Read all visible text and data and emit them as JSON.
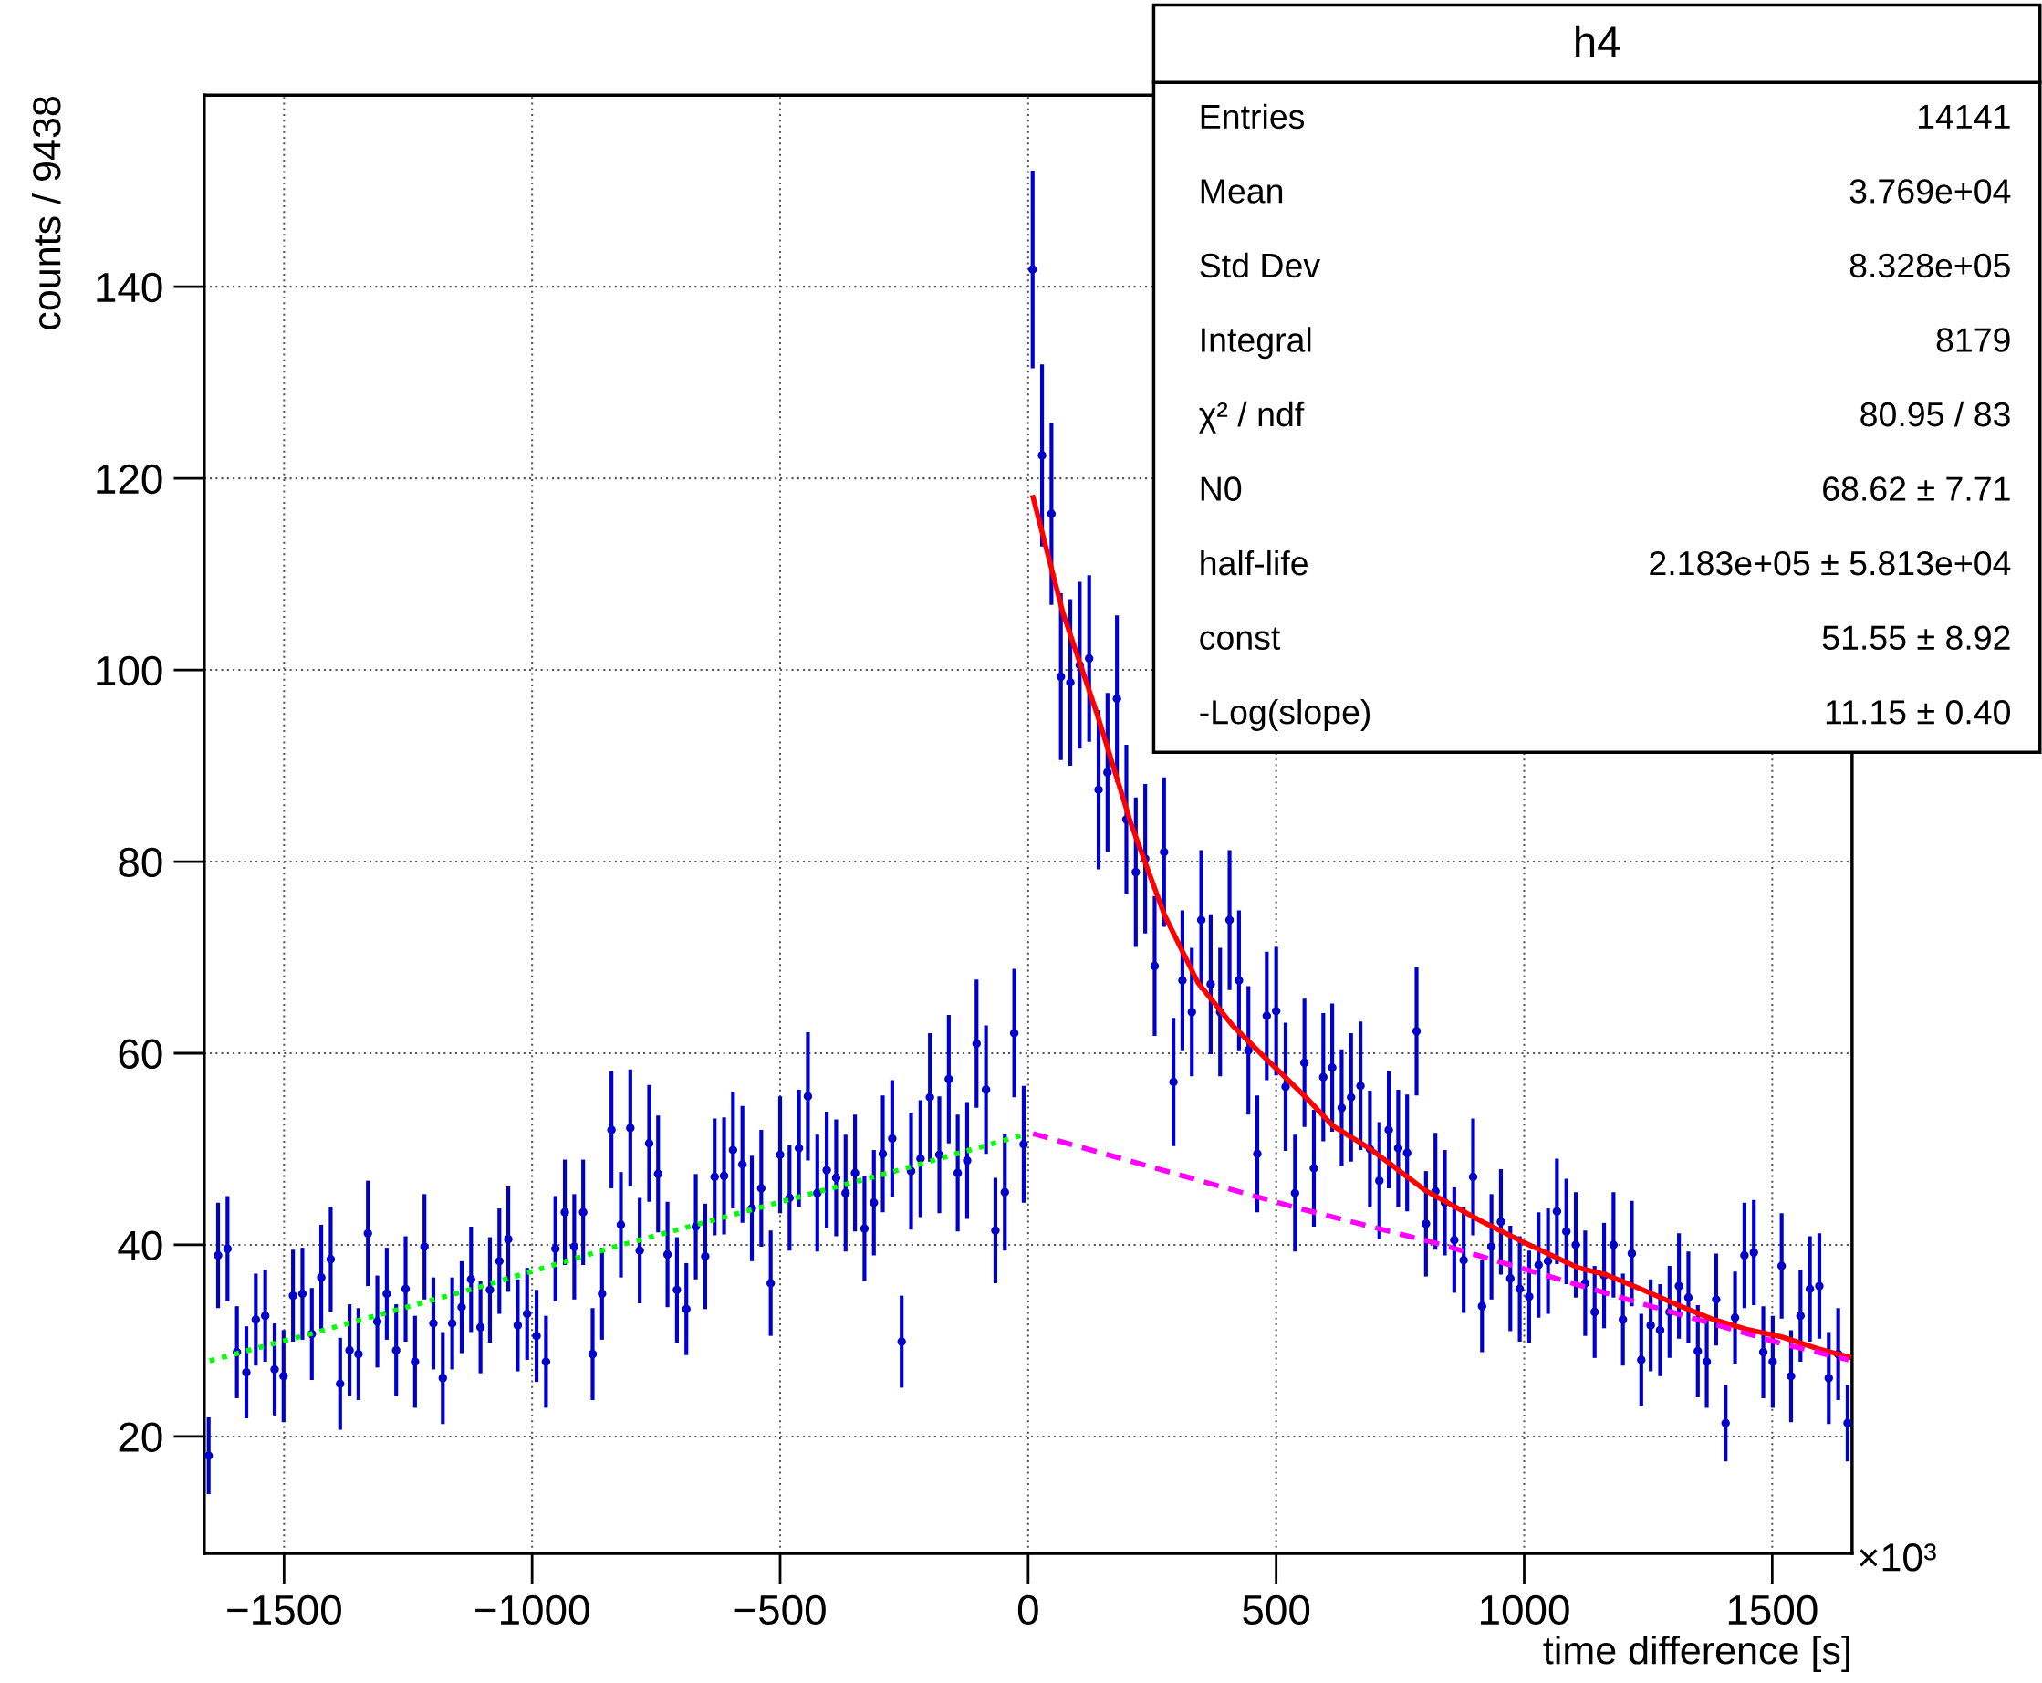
{
  "chart_data": {
    "type": "scatter",
    "xlabel": "time difference [s]",
    "ylabel": "counts / 9438",
    "xlim": [
      -1661,
      1661
    ],
    "xticks": [
      {
        "value": -1500,
        "label": "−1500"
      },
      {
        "value": -1000,
        "label": "−1000"
      },
      {
        "value": -500,
        "label": "−500"
      },
      0,
      500,
      1000,
      1500
    ],
    "ylim": [
      7.8,
      160
    ],
    "yticks": [
      20,
      40,
      60,
      80,
      100,
      120,
      140
    ],
    "grid": true,
    "legend": false,
    "annotations": [
      "×10³",
      "h4",
      "Entries",
      "14141",
      "Mean",
      "3.769e+04",
      "Std Dev",
      "8.328e+05",
      "Integral",
      "8179",
      "χ² / ndf",
      "80.95 / 83",
      "N0",
      "68.62 ± 7.71",
      "half-life",
      "2.183e+05 ± 5.813e+04",
      "const",
      "51.55 ± 8.92",
      "-Log(slope)",
      "11.15 ± 0.40"
    ],
    "series": [
      {
        "type": "scatter",
        "color": "#0000cc",
        "marker": "circle",
        "x": [
          -1652,
          -1633,
          -1614,
          -1595,
          -1576,
          -1557,
          -1538,
          -1519,
          -1501,
          -1482,
          -1463,
          -1444,
          -1425,
          -1406,
          -1387,
          -1368,
          -1350,
          -1331,
          -1312,
          -1293,
          -1274,
          -1255,
          -1236,
          -1217,
          -1199,
          -1180,
          -1161,
          -1142,
          -1123,
          -1104,
          -1085,
          -1066,
          -1048,
          -1029,
          -1010,
          -991,
          -972,
          -953,
          -934,
          -915,
          -897,
          -878,
          -859,
          -840,
          -821,
          -802,
          -783,
          -764,
          -746,
          -727,
          -708,
          -689,
          -670,
          -651,
          -632,
          -613,
          -595,
          -576,
          -557,
          -538,
          -519,
          -500,
          -481,
          -462,
          -444,
          -425,
          -406,
          -387,
          -368,
          -349,
          -330,
          -311,
          -293,
          -274,
          -255,
          -236,
          -217,
          -198,
          -179,
          -160,
          -142,
          -123,
          -104,
          -85,
          -66,
          -47,
          -28,
          -9,
          9,
          28,
          47,
          66,
          85,
          104,
          123,
          142,
          160,
          179,
          198,
          217,
          236,
          255,
          274,
          293,
          311,
          330,
          349,
          368,
          387,
          406,
          425,
          444,
          462,
          481,
          500,
          519,
          538,
          557,
          576,
          595,
          613,
          632,
          651,
          670,
          689,
          708,
          727,
          746,
          764,
          783,
          802,
          821,
          840,
          859,
          878,
          897,
          915,
          934,
          953,
          972,
          991,
          1010,
          1029,
          1048,
          1066,
          1085,
          1104,
          1123,
          1142,
          1161,
          1180,
          1199,
          1217,
          1236,
          1255,
          1274,
          1293,
          1312,
          1331,
          1350,
          1368,
          1387,
          1406,
          1425,
          1444,
          1463,
          1482,
          1501,
          1519,
          1538,
          1557,
          1576,
          1595,
          1614,
          1633,
          1652
        ],
        "values": [
          18.0,
          38.9,
          39.6,
          28.8,
          26.7,
          32.2,
          32.6,
          27.0,
          26.3,
          34.7,
          34.9,
          30.7,
          36.6,
          38.5,
          25.5,
          29.0,
          28.6,
          41.2,
          32.0,
          34.9,
          29.0,
          35.4,
          27.8,
          39.8,
          31.8,
          26.1,
          31.8,
          33.5,
          36.4,
          31.4,
          35.3,
          38.3,
          40.6,
          31.6,
          32.8,
          30.5,
          27.8,
          39.6,
          43.4,
          39.8,
          43.4,
          28.6,
          34.9,
          52.0,
          42.1,
          52.2,
          39.4,
          50.6,
          47.4,
          39.0,
          35.3,
          33.3,
          41.9,
          38.8,
          47.1,
          47.2,
          49.9,
          48.4,
          43.8,
          45.9,
          36.0,
          49.4,
          44.9,
          50.1,
          55.5,
          45.4,
          47.8,
          47.0,
          45.4,
          47.5,
          41.7,
          44.4,
          49.5,
          51.1,
          29.9,
          47.7,
          49.0,
          55.4,
          49.4,
          57.3,
          47.5,
          48.8,
          61.0,
          56.2,
          41.5,
          45.5,
          62.1,
          50.5,
          141.8,
          122.4,
          116.3,
          99.3,
          98.7,
          100.5,
          101.2,
          87.5,
          89.3,
          97.0,
          84.4,
          78.9,
          80.3,
          69.1,
          81.0,
          57.0,
          67.6,
          64.3,
          73.9,
          67.2,
          64.3,
          73.9,
          67.6,
          60.3,
          49.5,
          63.9,
          64.4,
          56.5,
          45.4,
          59.0,
          48.0,
          57.5,
          58.5,
          54.3,
          55.4,
          56.6,
          50.0,
          46.7,
          52.0,
          50.1,
          49.6,
          62.3,
          42.2,
          45.6,
          44.4,
          40.5,
          38.4,
          47.1,
          33.6,
          39.8,
          42.4,
          36.5,
          35.4,
          34.6,
          37.9,
          38.3,
          43.5,
          41.4,
          40.0,
          36.0,
          33.0,
          36.8,
          40.0,
          32.2,
          39.1,
          28.0,
          31.6,
          31.1,
          33.0,
          35.7,
          34.5,
          28.9,
          27.8,
          34.3,
          21.4,
          32.4,
          38.9,
          39.2,
          28.8,
          27.8,
          37.8,
          26.3,
          32.6,
          35.4,
          35.7,
          26.1,
          28.6,
          21.4
        ],
        "errors": [
          4.0,
          5.5,
          5.5,
          4.8,
          4.8,
          4.8,
          4.8,
          4.8,
          4.8,
          4.8,
          4.8,
          4.8,
          5.5,
          5.5,
          4.8,
          4.8,
          4.8,
          5.5,
          4.8,
          4.8,
          4.8,
          5.5,
          4.8,
          5.5,
          4.8,
          4.8,
          4.8,
          4.8,
          5.5,
          4.8,
          5.5,
          5.5,
          5.5,
          4.8,
          4.8,
          4.8,
          4.8,
          5.5,
          5.5,
          5.5,
          5.5,
          4.8,
          4.8,
          6.1,
          5.5,
          6.1,
          5.5,
          6.1,
          6.1,
          5.5,
          5.5,
          4.8,
          5.5,
          5.5,
          6.1,
          6.1,
          6.1,
          6.1,
          5.5,
          6.1,
          5.5,
          6.1,
          5.5,
          6.1,
          6.7,
          6.1,
          6.1,
          6.1,
          6.1,
          6.1,
          5.5,
          5.5,
          6.1,
          6.1,
          4.8,
          6.1,
          6.1,
          6.7,
          6.1,
          6.7,
          6.1,
          6.1,
          6.7,
          6.7,
          5.5,
          6.1,
          6.7,
          6.1,
          10.3,
          9.5,
          9.5,
          8.7,
          8.7,
          8.7,
          8.7,
          8.3,
          8.3,
          8.7,
          7.8,
          7.8,
          7.8,
          7.3,
          7.8,
          6.7,
          7.3,
          6.7,
          7.3,
          7.3,
          6.7,
          7.3,
          7.3,
          6.7,
          6.1,
          6.7,
          6.7,
          6.7,
          6.1,
          6.7,
          6.1,
          6.7,
          6.7,
          6.1,
          6.7,
          6.7,
          6.1,
          6.1,
          6.1,
          6.1,
          6.1,
          6.7,
          5.5,
          6.1,
          5.5,
          5.5,
          5.5,
          6.1,
          4.8,
          5.5,
          5.5,
          5.5,
          5.5,
          4.8,
          5.5,
          5.5,
          5.5,
          5.5,
          5.5,
          5.5,
          4.8,
          5.5,
          5.5,
          4.8,
          5.5,
          4.8,
          4.8,
          4.8,
          4.8,
          5.5,
          4.8,
          4.8,
          4.8,
          4.8,
          4.0,
          4.8,
          5.5,
          5.5,
          4.8,
          4.8,
          5.5,
          4.8,
          4.8,
          5.5,
          5.5,
          4.8,
          4.8,
          4.0
        ]
      },
      {
        "type": "line",
        "color": "#ff0000",
        "line_style": "solid",
        "x": [
          10,
          70,
          139,
          207,
          275,
          343,
          412,
          480,
          558,
          615,
          690,
          803,
          916,
          1010,
          1110,
          1164,
          1235,
          1306,
          1377,
          1448,
          1519,
          1590,
          1654
        ],
        "values": [
          118.0,
          106.0,
          95.4,
          84.0,
          74.4,
          67.3,
          62.9,
          59.4,
          55.5,
          52.4,
          50.0,
          45.6,
          42.4,
          40.0,
          37.6,
          36.9,
          35.4,
          33.8,
          32.3,
          31.2,
          30.4,
          29.2,
          28.3
        ]
      },
      {
        "type": "line",
        "color": "#ff00ff",
        "line_style": "dashed",
        "x": [
          10,
          539,
          821,
          1104,
          1235,
          1377,
          1519,
          1654
        ],
        "values": [
          51.6,
          43.9,
          40.2,
          35.9,
          33.9,
          31.8,
          29.7,
          28.0
        ]
      },
      {
        "type": "line",
        "color": "#00ff00",
        "line_style": "dotted",
        "x": [
          -1650,
          -1448,
          -1113,
          -827,
          -548,
          -261,
          -8
        ],
        "values": [
          27.9,
          30.7,
          35.5,
          39.9,
          43.8,
          47.8,
          51.5
        ]
      }
    ]
  }
}
